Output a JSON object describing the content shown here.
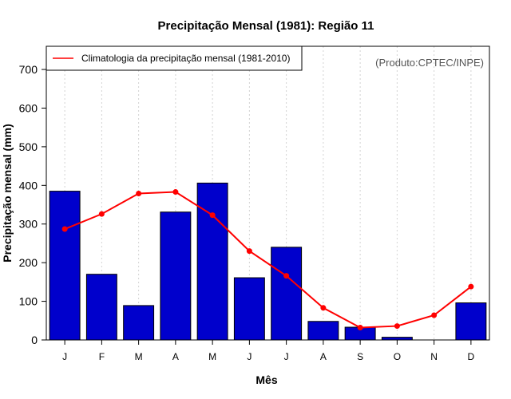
{
  "chart_data": {
    "type": "bar",
    "title": "Precipitação Mensal (1981): Região 11",
    "xlabel": "Mês",
    "ylabel": "Precipitação mensal (mm)",
    "ylim": [
      0,
      760
    ],
    "yticks": [
      0,
      100,
      200,
      300,
      400,
      500,
      600,
      700
    ],
    "grid": "vertical dotted",
    "categories": [
      "J",
      "F",
      "M",
      "A",
      "M",
      "J",
      "J",
      "A",
      "S",
      "O",
      "N",
      "D"
    ],
    "series": [
      {
        "name": "Precipitação mensal (1981)",
        "kind": "bar",
        "color": "#0000cc",
        "values": [
          385,
          170,
          89,
          331,
          406,
          161,
          240,
          48,
          33,
          7,
          0,
          96
        ]
      },
      {
        "name": "Climatologia da precipitação mensal (1981-2010)",
        "kind": "line",
        "color": "#ff0000",
        "values": [
          287,
          326,
          379,
          383,
          323,
          230,
          166,
          83,
          32,
          36,
          64,
          138
        ]
      }
    ],
    "legend": {
      "position": "top-left",
      "label": "Climatologia da precipitação mensal (1981-2010)"
    },
    "annotation": "(Produto:CPTEC/INPE)"
  }
}
